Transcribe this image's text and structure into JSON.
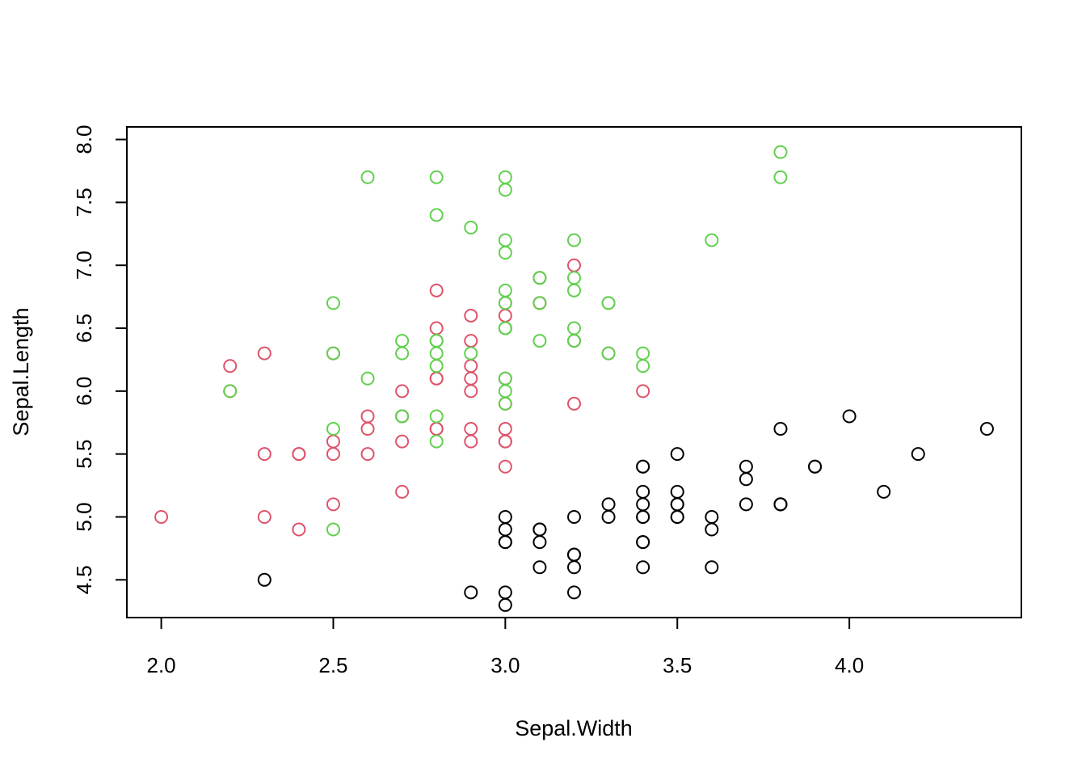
{
  "chart_data": {
    "type": "scatter",
    "title": "",
    "xlabel": "Sepal.Width",
    "ylabel": "Sepal.Length",
    "xlim": [
      1.9,
      4.5
    ],
    "ylim": [
      4.2,
      8.1
    ],
    "xticks": [
      2.0,
      2.5,
      3.0,
      3.5,
      4.0
    ],
    "xtick_labels": [
      "2.0",
      "2.5",
      "3.0",
      "3.5",
      "4.0"
    ],
    "yticks": [
      4.5,
      5.0,
      5.5,
      6.0,
      6.5,
      7.0,
      7.5,
      8.0
    ],
    "ytick_labels": [
      "4.5",
      "5.0",
      "5.5",
      "6.0",
      "6.5",
      "7.0",
      "7.5",
      "8.0"
    ],
    "grid": false,
    "legend": "none",
    "series": [
      {
        "color": "#000000",
        "points": [
          [
            3.5,
            5.1
          ],
          [
            3.0,
            4.9
          ],
          [
            3.2,
            4.7
          ],
          [
            3.1,
            4.6
          ],
          [
            3.6,
            5.0
          ],
          [
            3.9,
            5.4
          ],
          [
            3.4,
            4.6
          ],
          [
            3.4,
            5.0
          ],
          [
            2.9,
            4.4
          ],
          [
            3.1,
            4.9
          ],
          [
            3.7,
            5.4
          ],
          [
            3.4,
            4.8
          ],
          [
            3.0,
            4.8
          ],
          [
            3.0,
            4.3
          ],
          [
            4.0,
            5.8
          ],
          [
            4.4,
            5.7
          ],
          [
            3.9,
            5.4
          ],
          [
            3.5,
            5.1
          ],
          [
            3.8,
            5.7
          ],
          [
            3.8,
            5.1
          ],
          [
            3.4,
            5.4
          ],
          [
            3.7,
            5.1
          ],
          [
            3.6,
            4.6
          ],
          [
            3.3,
            5.1
          ],
          [
            3.4,
            4.8
          ],
          [
            3.0,
            5.0
          ],
          [
            3.4,
            5.0
          ],
          [
            3.5,
            5.2
          ],
          [
            3.4,
            5.2
          ],
          [
            3.2,
            4.7
          ],
          [
            3.1,
            4.8
          ],
          [
            3.4,
            5.4
          ],
          [
            4.1,
            5.2
          ],
          [
            4.2,
            5.5
          ],
          [
            3.1,
            4.9
          ],
          [
            3.2,
            5.0
          ],
          [
            3.5,
            5.5
          ],
          [
            3.6,
            4.9
          ],
          [
            3.0,
            4.4
          ],
          [
            3.4,
            5.1
          ],
          [
            3.5,
            5.0
          ],
          [
            2.3,
            4.5
          ],
          [
            3.2,
            4.4
          ],
          [
            3.5,
            5.0
          ],
          [
            3.8,
            5.1
          ],
          [
            3.0,
            4.8
          ],
          [
            3.8,
            5.1
          ],
          [
            3.2,
            4.6
          ],
          [
            3.7,
            5.3
          ],
          [
            3.3,
            5.0
          ]
        ]
      },
      {
        "color": "#df536b",
        "points": [
          [
            3.2,
            7.0
          ],
          [
            3.2,
            6.4
          ],
          [
            3.1,
            6.9
          ],
          [
            2.3,
            5.5
          ],
          [
            2.8,
            6.5
          ],
          [
            2.8,
            5.7
          ],
          [
            3.3,
            6.3
          ],
          [
            2.4,
            4.9
          ],
          [
            2.9,
            6.6
          ],
          [
            2.7,
            5.2
          ],
          [
            2.0,
            5.0
          ],
          [
            3.0,
            5.9
          ],
          [
            2.2,
            6.0
          ],
          [
            2.9,
            6.1
          ],
          [
            2.9,
            5.6
          ],
          [
            3.1,
            6.7
          ],
          [
            3.0,
            5.6
          ],
          [
            2.7,
            5.8
          ],
          [
            2.2,
            6.2
          ],
          [
            2.5,
            5.6
          ],
          [
            3.2,
            5.9
          ],
          [
            2.8,
            6.1
          ],
          [
            2.5,
            6.3
          ],
          [
            2.8,
            6.1
          ],
          [
            2.9,
            6.4
          ],
          [
            3.0,
            6.6
          ],
          [
            2.8,
            6.8
          ],
          [
            3.0,
            6.7
          ],
          [
            2.9,
            6.0
          ],
          [
            2.6,
            5.7
          ],
          [
            2.4,
            5.5
          ],
          [
            2.4,
            5.5
          ],
          [
            2.7,
            5.8
          ],
          [
            2.7,
            6.0
          ],
          [
            3.0,
            5.4
          ],
          [
            3.4,
            6.0
          ],
          [
            3.1,
            6.7
          ],
          [
            2.3,
            6.3
          ],
          [
            3.0,
            5.6
          ],
          [
            2.5,
            5.5
          ],
          [
            2.6,
            5.5
          ],
          [
            3.0,
            6.1
          ],
          [
            2.6,
            5.8
          ],
          [
            2.3,
            5.0
          ],
          [
            2.7,
            5.6
          ],
          [
            3.0,
            5.7
          ],
          [
            2.9,
            5.7
          ],
          [
            2.9,
            6.2
          ],
          [
            2.5,
            5.1
          ],
          [
            2.8,
            5.7
          ]
        ]
      },
      {
        "color": "#61d04f",
        "points": [
          [
            3.3,
            6.3
          ],
          [
            2.7,
            5.8
          ],
          [
            3.0,
            7.1
          ],
          [
            2.9,
            6.3
          ],
          [
            3.0,
            6.5
          ],
          [
            3.0,
            7.6
          ],
          [
            2.5,
            4.9
          ],
          [
            2.9,
            7.3
          ],
          [
            2.5,
            6.7
          ],
          [
            3.6,
            7.2
          ],
          [
            3.2,
            6.5
          ],
          [
            2.7,
            6.4
          ],
          [
            3.0,
            6.8
          ],
          [
            2.5,
            5.7
          ],
          [
            2.8,
            5.8
          ],
          [
            3.2,
            6.4
          ],
          [
            3.0,
            6.5
          ],
          [
            3.8,
            7.7
          ],
          [
            2.6,
            7.7
          ],
          [
            2.2,
            6.0
          ],
          [
            3.2,
            6.9
          ],
          [
            2.8,
            5.6
          ],
          [
            2.8,
            7.7
          ],
          [
            2.7,
            6.3
          ],
          [
            3.3,
            6.7
          ],
          [
            3.2,
            7.2
          ],
          [
            2.8,
            6.2
          ],
          [
            3.0,
            6.1
          ],
          [
            2.8,
            6.4
          ],
          [
            3.0,
            7.2
          ],
          [
            2.8,
            7.4
          ],
          [
            3.8,
            7.9
          ],
          [
            2.8,
            6.4
          ],
          [
            2.8,
            6.3
          ],
          [
            2.6,
            6.1
          ],
          [
            3.0,
            7.7
          ],
          [
            3.4,
            6.3
          ],
          [
            3.1,
            6.4
          ],
          [
            3.0,
            6.0
          ],
          [
            3.1,
            6.9
          ],
          [
            3.1,
            6.7
          ],
          [
            3.1,
            6.9
          ],
          [
            2.7,
            5.8
          ],
          [
            3.2,
            6.8
          ],
          [
            3.3,
            6.7
          ],
          [
            3.0,
            6.7
          ],
          [
            2.5,
            6.3
          ],
          [
            3.0,
            6.5
          ],
          [
            3.4,
            6.2
          ],
          [
            3.0,
            5.9
          ]
        ]
      }
    ]
  }
}
